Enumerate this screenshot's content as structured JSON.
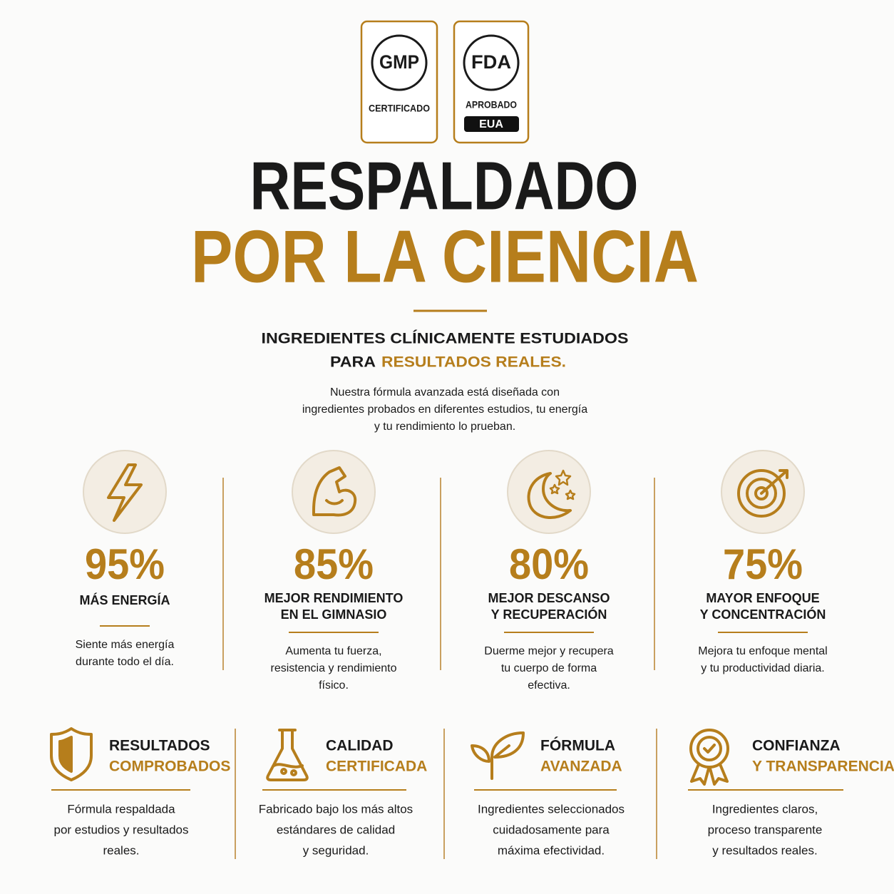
{
  "badges": [
    {
      "code": "GMP",
      "label": "CERTIFICADO"
    },
    {
      "code": "FDA",
      "label": "APROBADO",
      "tag": "EUA"
    }
  ],
  "title": {
    "line1": "RESPALDADO",
    "line2": "POR LA CIENCIA"
  },
  "subtitle": {
    "line1": "INGREDIENTES CLÍNICAMENTE ESTUDIADOS",
    "line2_prefix": "PARA",
    "line2_highlight": "RESULTADOS REALES."
  },
  "intro": [
    "Nuestra fórmula avanzada está diseñada con",
    "ingredientes probados en diferentes estudios, tu energía",
    "y tu rendimiento lo prueban."
  ],
  "stats": [
    {
      "value": "95%",
      "label": [
        "MÁS ENERGÍA"
      ],
      "description": [
        "Siente más energía",
        "durante todo el día."
      ]
    },
    {
      "value": "85%",
      "label": [
        "MEJOR RENDIMIENTO",
        "EN EL GIMNASIO"
      ],
      "description": [
        "Aumenta tu fuerza,",
        "resistencia y rendimiento",
        "físico."
      ]
    },
    {
      "value": "80%",
      "label": [
        "MEJOR DESCANSO",
        "Y RECUPERACIÓN"
      ],
      "description": [
        "Duerme mejor y recupera",
        "tu cuerpo de forma",
        "efectiva."
      ]
    },
    {
      "value": "75%",
      "label": [
        "MAYOR ENFOQUE",
        "Y CONCENTRACIÓN"
      ],
      "description": [
        "Mejora tu enfoque mental",
        "y tu productividad diaria."
      ]
    }
  ],
  "features": [
    {
      "title": "RESULTADOS",
      "highlight": "COMPROBADOS",
      "description": [
        "Fórmula respaldada",
        "por estudios y resultados",
        "reales."
      ]
    },
    {
      "title": "CALIDAD",
      "highlight": "CERTIFICADA",
      "description": [
        "Fabricado bajo los más altos",
        "estándares de calidad",
        "y seguridad."
      ]
    },
    {
      "title": "FÓRMULA",
      "highlight": "AVANZADA",
      "description": [
        "Ingredientes seleccionados",
        "cuidadosamente para",
        "máxima efectividad."
      ]
    },
    {
      "title": "CONFIANZA",
      "highlight": "Y TRANSPARENCIA",
      "description": [
        "Ingredientes claros,",
        "proceso transparente",
        "y resultados reales."
      ]
    }
  ]
}
